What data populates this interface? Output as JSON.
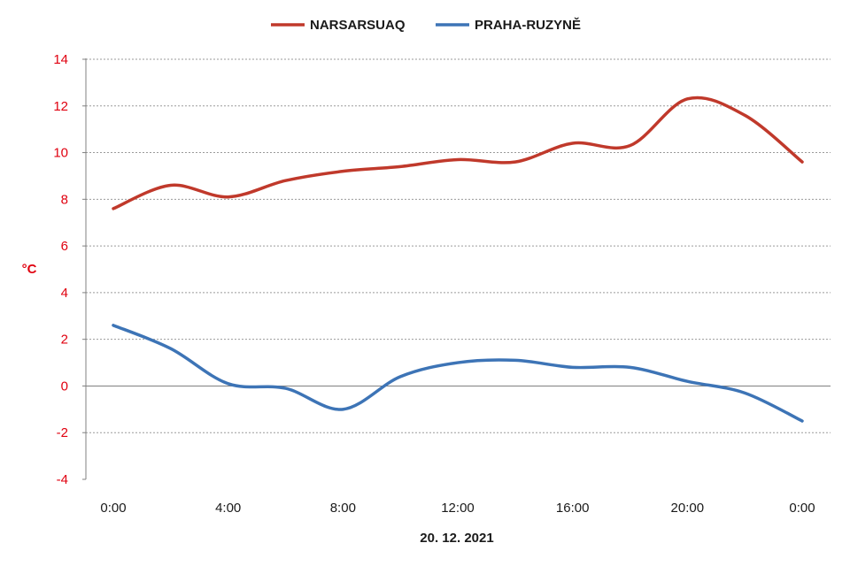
{
  "chart_data": {
    "type": "line",
    "x": [
      "0:00",
      "2:00",
      "4:00",
      "6:00",
      "8:00",
      "10:00",
      "12:00",
      "14:00",
      "16:00",
      "18:00",
      "20:00",
      "22:00",
      "0:00"
    ],
    "xticks": [
      "0:00",
      "4:00",
      "8:00",
      "12:00",
      "16:00",
      "20:00",
      "0:00"
    ],
    "series": [
      {
        "name": "NARSARSUAQ",
        "color": "#c0392b",
        "values": [
          7.6,
          8.6,
          8.1,
          8.8,
          9.2,
          9.4,
          9.7,
          9.6,
          10.4,
          10.3,
          12.3,
          11.6,
          9.6
        ]
      },
      {
        "name": "PRAHA-RUZYNĚ",
        "color": "#3d74b6",
        "values": [
          2.6,
          1.6,
          0.1,
          -0.1,
          -1.0,
          0.4,
          1.0,
          1.1,
          0.8,
          0.8,
          0.2,
          -0.3,
          -1.5
        ]
      }
    ],
    "title": "",
    "xlabel": "20. 12. 2021",
    "ylabel": "°C",
    "ylim": [
      -4,
      14
    ],
    "ystep": 2,
    "ytick_color": "#e0000f",
    "grid": true,
    "legend_position": "top"
  }
}
